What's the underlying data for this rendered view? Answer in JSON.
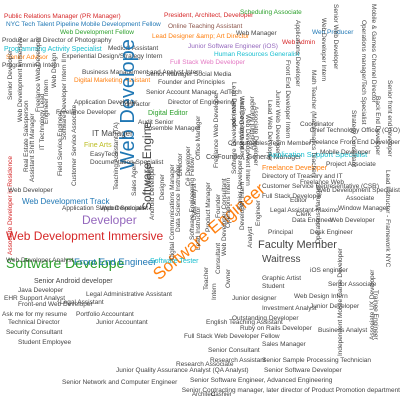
{
  "words": [
    {
      "text": "Public Relations Manager (PR Manager)",
      "color": "#d62728"
    },
    {
      "text": "President, Architect, Developer",
      "color": "#d62728"
    },
    {
      "text": "Scheduling Associate",
      "color": "#2ca02c"
    },
    {
      "text": "NYC Tech Talent Pipeline Mobile Development Fellow",
      "color": "#1f77b4"
    },
    {
      "text": "Online Teaching Assistant",
      "color": "#8c564b"
    },
    {
      "text": "Web Development Fellow",
      "color": "#2ca02c"
    },
    {
      "text": "Producer and Director of Photography",
      "color": "#444444"
    },
    {
      "text": "Lead Designer &amp; Art Director",
      "color": "#ff7f0e"
    },
    {
      "text": "Web Manager",
      "color": "#444444"
    },
    {
      "text": "Web Admin",
      "color": "#d62728"
    },
    {
      "text": "Web Producer",
      "color": "#1f77b4"
    },
    {
      "text": "Programming Activity Specialist",
      "color": "#17becf"
    },
    {
      "text": "Medical Assistant",
      "color": "#444444"
    },
    {
      "text": "Junior Software Engineer (iOS)",
      "color": "#9467bd"
    },
    {
      "text": "Senior Advisor",
      "color": "#ff7f0e"
    },
    {
      "text": "Experiential Design/Strategy Intern",
      "color": "#444444"
    },
    {
      "text": "Programming Intern",
      "color": "#444444"
    },
    {
      "text": "Full Stack Web Developer",
      "color": "#e377c2"
    },
    {
      "text": "Human Resources Generalist",
      "color": "#17becf"
    },
    {
      "text": "Business Management and Analyst Intern",
      "color": "#444444"
    },
    {
      "text": "Founder and Principles",
      "color": "#444444"
    },
    {
      "text": "Senior Manager Social Media",
      "color": "#444444"
    },
    {
      "text": "Digital Marketing Assistant",
      "color": "#ff7f0e"
    },
    {
      "text": "Senior Account Manager, AdTech",
      "color": "#444444"
    },
    {
      "text": "Web Develope",
      "color": "#1f77b4"
    },
    {
      "text": "Director of Engineering",
      "color": "#444444"
    },
    {
      "text": "Digital Editor",
      "color": "#2ca02c"
    },
    {
      "text": "Software Engine",
      "color": "#444444"
    },
    {
      "text": "Ensemble Manager",
      "color": "#444444"
    },
    {
      "text": "IT Manager",
      "color": "#444444"
    },
    {
      "text": "Fine Arts",
      "color": "#bcbd22"
    },
    {
      "text": "EasyTech",
      "color": "#444444"
    },
    {
      "text": "Developer",
      "color": "#9467bd"
    },
    {
      "text": "Web Development Track",
      "color": "#1f77b4"
    },
    {
      "text": "Associate Developer in Residence",
      "color": "#d62728"
    },
    {
      "text": "Web Development Immersive",
      "color": "#d62728"
    },
    {
      "text": "Software Engineer",
      "color": "#ff7f0e"
    },
    {
      "text": "Software Develope",
      "color": "#2ca02c"
    },
    {
      "text": "Front End Engineer",
      "color": "#1f77b4"
    },
    {
      "text": "Software Tester",
      "color": "#17becf"
    },
    {
      "text": "Senior Android developer",
      "color": "#444444"
    },
    {
      "text": "Java Developer",
      "color": "#444444"
    },
    {
      "text": "Web Developer",
      "color": "#444444"
    },
    {
      "text": "Co-Founder, General Manager",
      "color": "#444444"
    },
    {
      "text": "Consumables Team Member",
      "color": "#444444"
    },
    {
      "text": "Application Support Specialist",
      "color": "#17becf"
    },
    {
      "text": "Freelance Developer",
      "color": "#ff7f0e"
    },
    {
      "text": "Project Associate",
      "color": "#444444"
    },
    {
      "text": "Directory of Treasury and IT",
      "color": "#444444"
    },
    {
      "text": "Customer Service Representative (CSR)",
      "color": "#444444"
    },
    {
      "text": "Full Stack Developer",
      "color": "#444444"
    },
    {
      "text": "Faculty Member",
      "color": "#444444"
    },
    {
      "text": "Waitress",
      "color": "#444444"
    },
    {
      "text": "Graphic Artist",
      "color": "#444444"
    },
    {
      "text": "Investment Analyst",
      "color": "#444444"
    },
    {
      "text": "Outstanding Developer",
      "color": "#444444"
    },
    {
      "text": "Junior designer",
      "color": "#444444"
    },
    {
      "text": "Ruby on Rails Developer",
      "color": "#444444"
    },
    {
      "text": "English Teaching Assistant",
      "color": "#444444"
    },
    {
      "text": "Business Analyst",
      "color": "#444444"
    },
    {
      "text": "Full Stack Web Developer Fellow",
      "color": "#444444"
    },
    {
      "text": "Sales Manager",
      "color": "#444444"
    },
    {
      "text": "Senior Consultant",
      "color": "#444444"
    },
    {
      "text": "Research Assistant",
      "color": "#444444"
    },
    {
      "text": "Senior Sample Processing Technician",
      "color": "#444444"
    },
    {
      "text": "Junior Quality Assurance Analyst (QA Analyst)",
      "color": "#444444"
    },
    {
      "text": "Senior Software Developer",
      "color": "#444444"
    },
    {
      "text": "Senior Software Engineer, Advanced Engineering",
      "color": "#444444"
    },
    {
      "text": "Senior Contracting manager, later director of Product Promotion department",
      "color": "#444444"
    },
    {
      "text": "Senior Network and Computer Engineer",
      "color": "#444444"
    },
    {
      "text": "Security Consultant",
      "color": "#444444"
    },
    {
      "text": "Student Employee",
      "color": "#444444"
    },
    {
      "text": "Ask me for my resume",
      "color": "#444444"
    },
    {
      "text": "Technical Director",
      "color": "#444444"
    },
    {
      "text": "Front-end Web Developer",
      "color": "#444444"
    },
    {
      "text": "Portfolio Accountant",
      "color": "#444444"
    },
    {
      "text": "Junior Accountant",
      "color": "#444444"
    },
    {
      "text": "Legal Administrative Assistant",
      "color": "#444444"
    },
    {
      "text": "Legal Assistant",
      "color": "#444444"
    },
    {
      "text": "Research Associate",
      "color": "#444444"
    },
    {
      "text": "Web Design Intern",
      "color": "#444444"
    },
    {
      "text": "iOS engineer",
      "color": "#444444"
    },
    {
      "text": "Senior Associate",
      "color": "#444444"
    },
    {
      "text": "Junior Developer",
      "color": "#444444"
    },
    {
      "text": "Independent Mobile Game Developer",
      "color": "#444444"
    },
    {
      "text": "Data Analyst",
      "color": "#444444"
    },
    {
      "text": "Operations Manager",
      "color": "#444444"
    },
    {
      "text": "Senior front end developer",
      "color": "#444444"
    },
    {
      "text": "Back End Developer",
      "color": "#444444"
    },
    {
      "text": "Mobile & Games Channel Director",
      "color": "#444444"
    },
    {
      "text": "Operations manager/Tech Specialist",
      "color": "#444444"
    },
    {
      "text": "Strategy Consultant",
      "color": "#444444"
    },
    {
      "text": "Lead Instructor - Framework NYC",
      "color": "#444444"
    },
    {
      "text": "Trainee Engineer",
      "color": "#444444"
    },
    {
      "text": "Associate UX Developer",
      "color": "#444444"
    },
    {
      "text": "Senior Web Developer",
      "color": "#444444"
    },
    {
      "text": "Web Developer Intern",
      "color": "#444444"
    },
    {
      "text": "Applications Developer",
      "color": "#444444"
    },
    {
      "text": "Front End Developer Intern",
      "color": "#444444"
    },
    {
      "text": "Math Teacher (Mathematics Teacher)",
      "color": "#444444"
    },
    {
      "text": "Junior Web Developer",
      "color": "#444444"
    },
    {
      "text": "Lead Web Developer",
      "color": "#444444"
    },
    {
      "text": "Associate Developer",
      "color": "#444444"
    },
    {
      "text": "Web Development Intern",
      "color": "#444444"
    },
    {
      "text": "Audit Senior",
      "color": "#444444"
    },
    {
      "text": "Lead Developer",
      "color": "#444444"
    },
    {
      "text": "Web Development",
      "color": "#444444"
    },
    {
      "text": "Documentation Specialist",
      "color": "#444444"
    },
    {
      "text": "Field Service Engineer",
      "color": "#444444"
    },
    {
      "text": "Customer Service Associate",
      "color": "#444444"
    },
    {
      "text": "Teaching Assistant (TA)",
      "color": "#444444"
    },
    {
      "text": "Sales Agent",
      "color": "#444444"
    },
    {
      "text": "Android Developer",
      "color": "#444444"
    },
    {
      "text": "Data Science Instructor",
      "color": "#444444"
    },
    {
      "text": "Digital Communications Manager",
      "color": "#444444"
    },
    {
      "text": "Software Engineering Fellow",
      "color": "#444444"
    },
    {
      "text": "Lead Instructor",
      "color": "#444444"
    },
    {
      "text": "Product Manager",
      "color": "#444444"
    },
    {
      "text": "Founder",
      "color": "#444444"
    },
    {
      "text": "Operations Intern",
      "color": "#444444"
    },
    {
      "text": "Senior Developer",
      "color": "#444444"
    },
    {
      "text": "Developer Intern",
      "color": "#444444"
    },
    {
      "text": "Web Developer Consultant",
      "color": "#444444"
    },
    {
      "text": "Consultant",
      "color": "#444444"
    },
    {
      "text": "Analyst",
      "color": "#444444"
    },
    {
      "text": "Owner",
      "color": "#444444"
    },
    {
      "text": "Intern",
      "color": "#444444"
    },
    {
      "text": "Teacher",
      "color": "#444444"
    },
    {
      "text": "Engineer",
      "color": "#444444"
    },
    {
      "text": "Designer",
      "color": "#444444"
    },
    {
      "text": "Manager",
      "color": "#444444"
    },
    {
      "text": "Director",
      "color": "#444444"
    },
    {
      "text": "C# Developer",
      "color": "#444444"
    },
    {
      "text": "Contractor",
      "color": "#444444"
    },
    {
      "text": "Office Manager",
      "color": "#444444"
    },
    {
      "text": "Freelance Web Developer",
      "color": "#444444"
    },
    {
      "text": "Software Developer Intern",
      "color": "#444444"
    },
    {
      "text": "Senior Web Designer",
      "color": "#444444"
    },
    {
      "text": "Assistant Manager",
      "color": "#444444"
    },
    {
      "text": "Software Developer Intern II",
      "color": "#444444"
    },
    {
      "text": "Freelance Developer",
      "color": "#444444"
    },
    {
      "text": "Engineer Intern",
      "color": "#444444"
    },
    {
      "text": "IT Technology Lead",
      "color": "#444444"
    },
    {
      "text": "Assistant Shift Manager",
      "color": "#444444"
    },
    {
      "text": "Web Development Immersive",
      "color": "#444444"
    },
    {
      "text": "Application Support Specialist",
      "color": "#444444"
    },
    {
      "text": "Application Developer",
      "color": "#444444"
    },
    {
      "text": "Web Design",
      "color": "#444444"
    },
    {
      "text": "Freelance Web Developer",
      "color": "#444444"
    },
    {
      "text": "Real Estate Salesperson",
      "color": "#444444"
    },
    {
      "text": "Senior Developer",
      "color": "#444444"
    },
    {
      "text": "Web Developer",
      "color": "#444444"
    },
    {
      "text": "Web Developer Analyst",
      "color": "#444444"
    },
    {
      "text": "EHR Support Analyst",
      "color": "#444444"
    },
    {
      "text": "Window Manager",
      "color": "#444444"
    },
    {
      "text": "Principal",
      "color": "#444444"
    },
    {
      "text": "Web Developer",
      "color": "#444444"
    },
    {
      "text": "Associate",
      "color": "#444444"
    },
    {
      "text": "Web Development Specialist",
      "color": "#444444"
    },
    {
      "text": "Freelance Web",
      "color": "#444444"
    },
    {
      "text": "Mobile Developer",
      "color": "#444444"
    },
    {
      "text": "Freelance Front End Developer",
      "color": "#444444"
    },
    {
      "text": "Chief Technology Officer (CTO)",
      "color": "#444444"
    },
    {
      "text": "Coordinator",
      "color": "#444444"
    },
    {
      "text": "Student",
      "color": "#444444"
    },
    {
      "text": "Data Engineer",
      "color": "#444444"
    },
    {
      "text": "Legal Assistant-Maximo",
      "color": "#444444"
    },
    {
      "text": "Desk Engineer",
      "color": "#444444"
    },
    {
      "text": "Clerk",
      "color": "#444444"
    },
    {
      "text": "Editor",
      "color": "#444444"
    },
    {
      "text": "Architect",
      "color": "#444444"
    },
    {
      "text": "Cashier",
      "color": "#444444"
    }
  ]
}
